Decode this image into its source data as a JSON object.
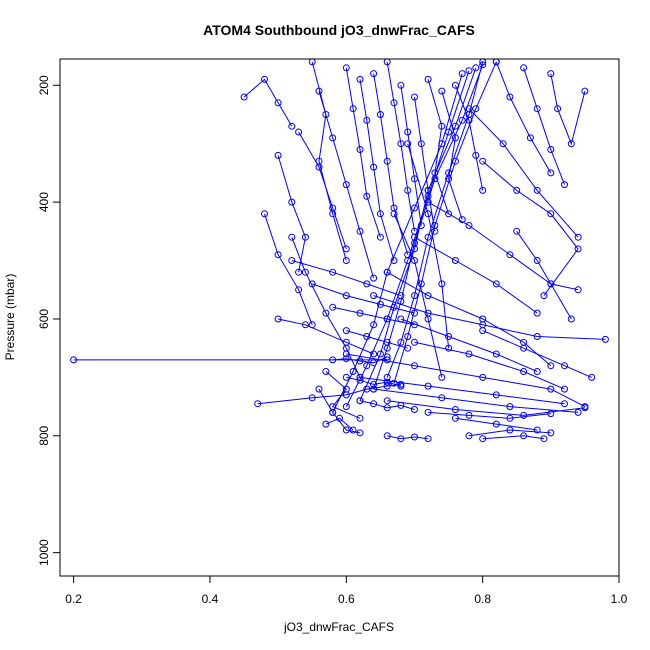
{
  "chart_data": {
    "type": "scatter",
    "title": "ATOM4 Southbound jO3_dnwFrac_CAFS",
    "xlabel": "jO3_dnwFrac_CAFS",
    "ylabel": "Pressure (mbar)",
    "xlim": [
      0.18,
      1.0
    ],
    "ylim": [
      1040,
      155
    ],
    "y_reversed": true,
    "grid": false,
    "legend": "none",
    "x_ticks": [
      {
        "value": 0.2,
        "label": "0.2"
      },
      {
        "value": 0.4,
        "label": "0.4"
      },
      {
        "value": 0.6,
        "label": "0.6"
      },
      {
        "value": 0.8,
        "label": "0.8"
      },
      {
        "value": 1.0,
        "label": "1.0"
      }
    ],
    "y_ticks": [
      {
        "value": 200,
        "label": "200"
      },
      {
        "value": 400,
        "label": "400"
      },
      {
        "value": 600,
        "label": "600"
      },
      {
        "value": 800,
        "label": "800"
      },
      {
        "value": 1000,
        "label": "1000"
      }
    ],
    "series_color": "#0000ff",
    "series": [
      {
        "x": [
          0.2,
          0.66
        ],
        "y": [
          670,
          670
        ]
      },
      {
        "x": [
          0.47,
          0.55,
          0.6,
          0.63,
          0.66,
          0.68
        ],
        "y": [
          745,
          735,
          730,
          720,
          715,
          712
        ]
      },
      {
        "x": [
          0.66,
          0.68,
          0.7,
          0.72,
          0.75,
          0.78,
          0.8
        ],
        "y": [
          700,
          640,
          560,
          460,
          350,
          250,
          160
        ]
      },
      {
        "x": [
          0.64,
          0.66,
          0.68,
          0.7,
          0.73,
          0.77,
          0.8
        ],
        "y": [
          720,
          650,
          570,
          470,
          360,
          260,
          165
        ]
      },
      {
        "x": [
          0.62,
          0.65,
          0.67,
          0.7,
          0.72,
          0.76,
          0.79
        ],
        "y": [
          740,
          660,
          580,
          480,
          380,
          270,
          170
        ]
      },
      {
        "x": [
          0.6,
          0.63,
          0.66,
          0.69,
          0.72,
          0.75,
          0.78
        ],
        "y": [
          750,
          680,
          600,
          500,
          390,
          280,
          175
        ]
      },
      {
        "x": [
          0.67,
          0.69,
          0.71,
          0.73,
          0.76,
          0.79,
          0.82
        ],
        "y": [
          710,
          630,
          540,
          440,
          330,
          240,
          160
        ]
      },
      {
        "x": [
          0.58,
          0.61,
          0.64,
          0.66,
          0.7,
          0.74,
          0.77
        ],
        "y": [
          760,
          690,
          610,
          520,
          410,
          300,
          180
        ]
      },
      {
        "x": [
          0.45,
          0.48,
          0.5,
          0.52
        ],
        "y": [
          220,
          190,
          230,
          270
        ]
      },
      {
        "x": [
          0.55,
          0.57,
          0.56,
          0.58,
          0.6
        ],
        "y": [
          160,
          250,
          330,
          420,
          500
        ]
      },
      {
        "x": [
          0.5,
          0.52,
          0.54,
          0.53
        ],
        "y": [
          320,
          400,
          460,
          520
        ]
      },
      {
        "x": [
          0.48,
          0.5,
          0.53,
          0.55
        ],
        "y": [
          420,
          490,
          550,
          610
        ]
      },
      {
        "x": [
          0.52,
          0.54,
          0.57,
          0.6,
          0.62
        ],
        "y": [
          460,
          520,
          590,
          650,
          700
        ]
      },
      {
        "x": [
          0.53,
          0.56,
          0.58,
          0.6
        ],
        "y": [
          280,
          340,
          410,
          480
        ]
      },
      {
        "x": [
          0.56,
          0.58,
          0.6,
          0.62,
          0.64
        ],
        "y": [
          210,
          290,
          370,
          450,
          530
        ]
      },
      {
        "x": [
          0.6,
          0.61,
          0.62,
          0.63,
          0.65
        ],
        "y": [
          170,
          240,
          310,
          390,
          460
        ]
      },
      {
        "x": [
          0.62,
          0.63,
          0.64,
          0.65,
          0.67
        ],
        "y": [
          190,
          260,
          340,
          420,
          500
        ]
      },
      {
        "x": [
          0.64,
          0.65,
          0.66,
          0.67,
          0.69
        ],
        "y": [
          180,
          250,
          330,
          410,
          490
        ]
      },
      {
        "x": [
          0.66,
          0.67,
          0.68,
          0.69,
          0.7
        ],
        "y": [
          160,
          230,
          300,
          380,
          450
        ]
      },
      {
        "x": [
          0.68,
          0.69,
          0.7,
          0.71
        ],
        "y": [
          200,
          280,
          360,
          440
        ]
      },
      {
        "x": [
          0.7,
          0.71,
          0.72,
          0.73
        ],
        "y": [
          220,
          300,
          380,
          450
        ]
      },
      {
        "x": [
          0.72,
          0.74,
          0.73,
          0.75
        ],
        "y": [
          190,
          270,
          350,
          420
        ]
      },
      {
        "x": [
          0.74,
          0.76,
          0.75,
          0.77
        ],
        "y": [
          210,
          290,
          360,
          430
        ]
      },
      {
        "x": [
          0.76,
          0.78,
          0.79,
          0.8
        ],
        "y": [
          200,
          260,
          320,
          380
        ]
      },
      {
        "x": [
          0.82,
          0.84,
          0.87,
          0.9
        ],
        "y": [
          160,
          220,
          290,
          350
        ]
      },
      {
        "x": [
          0.86,
          0.88,
          0.9,
          0.92
        ],
        "y": [
          170,
          240,
          310,
          370
        ]
      },
      {
        "x": [
          0.9,
          0.91,
          0.93,
          0.95
        ],
        "y": [
          180,
          240,
          300,
          210
        ]
      },
      {
        "x": [
          0.78,
          0.83,
          0.88,
          0.94
        ],
        "y": [
          240,
          300,
          380,
          460
        ]
      },
      {
        "x": [
          0.8,
          0.85,
          0.9,
          0.94,
          0.89
        ],
        "y": [
          330,
          380,
          420,
          480,
          560
        ]
      },
      {
        "x": [
          0.72,
          0.78,
          0.84,
          0.9,
          0.94
        ],
        "y": [
          400,
          440,
          490,
          540,
          550
        ]
      },
      {
        "x": [
          0.7,
          0.76,
          0.82,
          0.88
        ],
        "y": [
          460,
          500,
          540,
          590
        ]
      },
      {
        "x": [
          0.66,
          0.72,
          0.8,
          0.86,
          0.9
        ],
        "y": [
          520,
          560,
          600,
          640,
          680
        ]
      },
      {
        "x": [
          0.64,
          0.72,
          0.8,
          0.88,
          0.98
        ],
        "y": [
          560,
          590,
          610,
          630,
          635
        ]
      },
      {
        "x": [
          0.68,
          0.75,
          0.82,
          0.88
        ],
        "y": [
          600,
          630,
          660,
          690
        ]
      },
      {
        "x": [
          0.7,
          0.78,
          0.86,
          0.92
        ],
        "y": [
          640,
          660,
          690,
          720
        ]
      },
      {
        "x": [
          0.6,
          0.7,
          0.8,
          0.9,
          0.95
        ],
        "y": [
          660,
          680,
          700,
          720,
          750
        ]
      },
      {
        "x": [
          0.62,
          0.72,
          0.82,
          0.92
        ],
        "y": [
          700,
          715,
          730,
          745
        ]
      },
      {
        "x": [
          0.64,
          0.74,
          0.84,
          0.94
        ],
        "y": [
          720,
          735,
          750,
          760
        ]
      },
      {
        "x": [
          0.66,
          0.76,
          0.86,
          0.95
        ],
        "y": [
          740,
          755,
          765,
          752
        ]
      },
      {
        "x": [
          0.72,
          0.78,
          0.84,
          0.9
        ],
        "y": [
          760,
          765,
          770,
          762
        ]
      },
      {
        "x": [
          0.76,
          0.82,
          0.88
        ],
        "y": [
          770,
          780,
          790
        ]
      },
      {
        "x": [
          0.78,
          0.84,
          0.9
        ],
        "y": [
          800,
          790,
          795
        ]
      },
      {
        "x": [
          0.8,
          0.86,
          0.89
        ],
        "y": [
          805,
          800,
          805
        ]
      },
      {
        "x": [
          0.56,
          0.58,
          0.6,
          0.62
        ],
        "y": [
          720,
          760,
          790,
          795
        ]
      },
      {
        "x": [
          0.57,
          0.59,
          0.61
        ],
        "y": [
          780,
          770,
          790
        ]
      },
      {
        "x": [
          0.66,
          0.68,
          0.7,
          0.72
        ],
        "y": [
          800,
          805,
          802,
          805
        ]
      },
      {
        "x": [
          0.62,
          0.64,
          0.66,
          0.68,
          0.7
        ],
        "y": [
          740,
          745,
          752,
          748,
          755
        ]
      },
      {
        "x": [
          0.6,
          0.62,
          0.64,
          0.66,
          0.68
        ],
        "y": [
          700,
          705,
          712,
          708,
          715
        ]
      },
      {
        "x": [
          0.58,
          0.6,
          0.62,
          0.64,
          0.66
        ],
        "y": [
          670,
          668,
          672,
          675,
          665
        ]
      },
      {
        "x": [
          0.6,
          0.63,
          0.66,
          0.69
        ],
        "y": [
          620,
          630,
          640,
          650
        ]
      },
      {
        "x": [
          0.58,
          0.62,
          0.66,
          0.7
        ],
        "y": [
          580,
          590,
          600,
          610
        ]
      },
      {
        "x": [
          0.55,
          0.6,
          0.65,
          0.7
        ],
        "y": [
          540,
          560,
          575,
          590
        ]
      },
      {
        "x": [
          0.52,
          0.58,
          0.63,
          0.68
        ],
        "y": [
          500,
          520,
          540,
          560
        ]
      },
      {
        "x": [
          0.5,
          0.54,
          0.6,
          0.64
        ],
        "y": [
          600,
          610,
          640,
          660
        ]
      },
      {
        "x": [
          0.57,
          0.6,
          0.58,
          0.62
        ],
        "y": [
          690,
          720,
          750,
          770
        ]
      },
      {
        "x": [
          0.67,
          0.7,
          0.72,
          0.74
        ],
        "y": [
          420,
          500,
          600,
          700
        ]
      },
      {
        "x": [
          0.69,
          0.72,
          0.74,
          0.75
        ],
        "y": [
          300,
          420,
          540,
          650
        ]
      },
      {
        "x": [
          0.85,
          0.88,
          0.9,
          0.93
        ],
        "y": [
          450,
          500,
          540,
          600
        ]
      },
      {
        "x": [
          0.8,
          0.86,
          0.92,
          0.96
        ],
        "y": [
          620,
          650,
          680,
          700
        ]
      }
    ]
  }
}
